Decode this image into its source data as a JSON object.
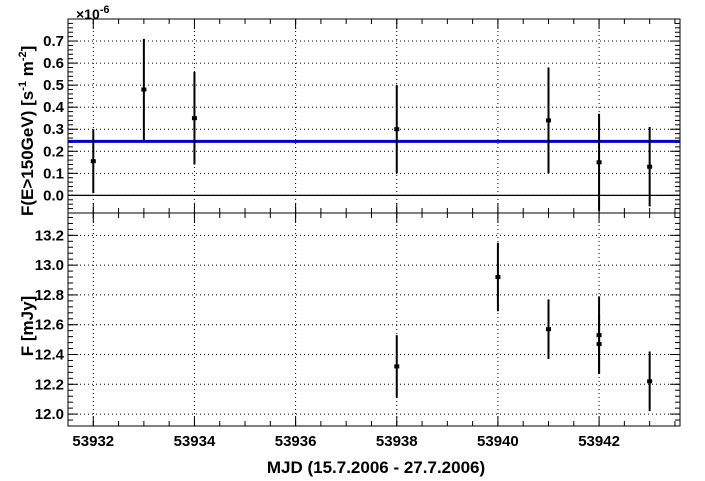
{
  "chart_data": [
    {
      "type": "scatter",
      "panel": "top",
      "ylabel_main": "F(E>150GeV) [s",
      "ylabel_exp1": "-1",
      "ylabel_mid": " m",
      "ylabel_exp2": "-2",
      "ylabel_end": "]",
      "y_multiplier_base": "×10",
      "y_multiplier_exp": "-6",
      "xlim": [
        53931.5,
        53943.6
      ],
      "ylim": [
        -0.08,
        0.8
      ],
      "yticks": [
        0.0,
        0.1,
        0.2,
        0.3,
        0.4,
        0.5,
        0.6,
        0.7
      ],
      "ytick_labels": [
        "0.0",
        "0.1",
        "0.2",
        "0.3",
        "0.4",
        "0.5",
        "0.6",
        "0.7"
      ],
      "grid": true,
      "zero_line": 0,
      "reference_line": {
        "y": 0.245,
        "color": "#0000cc"
      },
      "points": [
        {
          "x": 53932.0,
          "y": 0.155,
          "err": 0.145
        },
        {
          "x": 53933.0,
          "y": 0.48,
          "err": 0.23
        },
        {
          "x": 53934.0,
          "y": 0.35,
          "err": 0.21
        },
        {
          "x": 53938.0,
          "y": 0.3,
          "err": 0.2
        },
        {
          "x": 53941.0,
          "y": 0.34,
          "err": 0.24
        },
        {
          "x": 53942.0,
          "y": 0.15,
          "err": 0.22
        },
        {
          "x": 53943.0,
          "y": 0.13,
          "err": 0.18
        }
      ]
    },
    {
      "type": "scatter",
      "panel": "bottom",
      "ylabel": "F [mJy]",
      "xlabel": "MJD (15.7.2006 - 27.7.2006)",
      "xlim": [
        53931.5,
        53943.6
      ],
      "ylim": [
        11.92,
        13.35
      ],
      "yticks": [
        12.0,
        12.2,
        12.4,
        12.6,
        12.8,
        13.0,
        13.2
      ],
      "ytick_labels": [
        "12.0",
        "12.2",
        "12.4",
        "12.6",
        "12.8",
        "13.0",
        "13.2"
      ],
      "xticks": [
        53932,
        53934,
        53936,
        53938,
        53940,
        53942
      ],
      "xtick_labels": [
        "53932",
        "53934",
        "53936",
        "53938",
        "53940",
        "53942"
      ],
      "grid": true,
      "points": [
        {
          "x": 53938.0,
          "y": 12.32,
          "err": 0.21
        },
        {
          "x": 53940.0,
          "y": 12.92,
          "err": 0.23
        },
        {
          "x": 53941.0,
          "y": 12.57,
          "err": 0.2
        },
        {
          "x": 53942.0,
          "y": 12.53,
          "err": 0.26
        },
        {
          "x": 53942.0,
          "y": 12.47,
          "err": 0.2
        },
        {
          "x": 53943.0,
          "y": 12.22,
          "err": 0.2
        }
      ]
    }
  ]
}
